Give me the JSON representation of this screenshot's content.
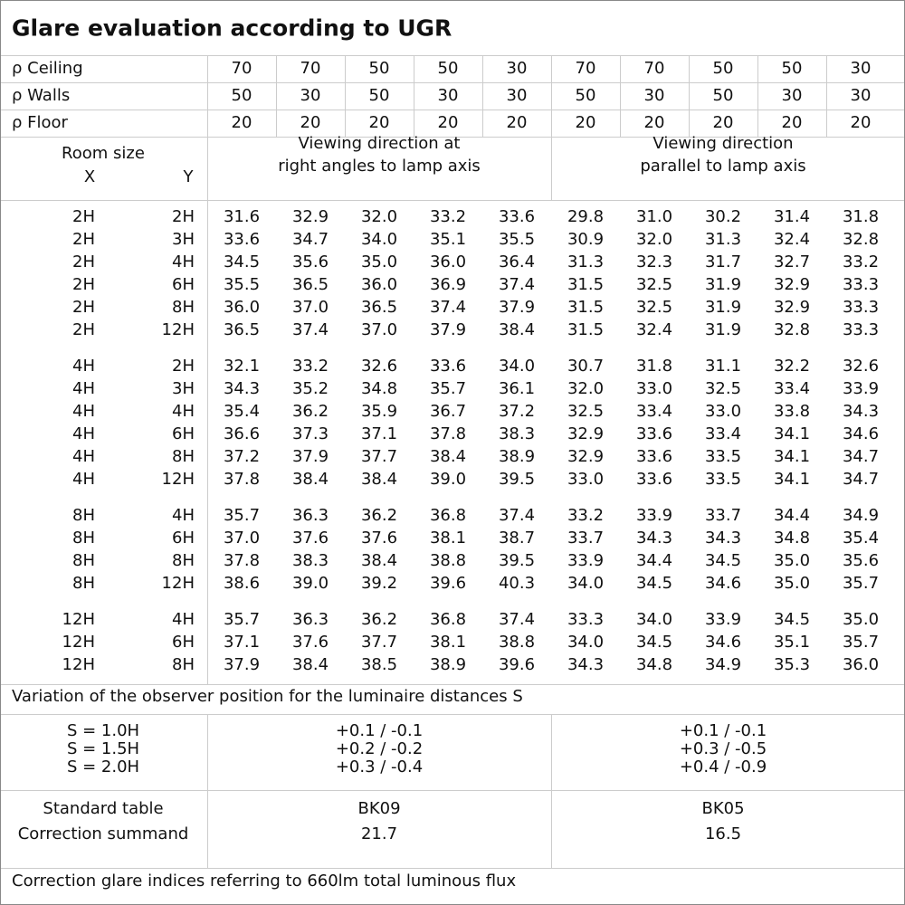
{
  "title": "Glare evaluation according to UGR",
  "reflectances": [
    {
      "label": "ρ Ceiling",
      "values": [
        "70",
        "70",
        "50",
        "50",
        "30",
        "70",
        "70",
        "50",
        "50",
        "30"
      ]
    },
    {
      "label": "ρ Walls",
      "values": [
        "50",
        "30",
        "50",
        "30",
        "30",
        "50",
        "30",
        "50",
        "30",
        "30"
      ]
    },
    {
      "label": "ρ Floor",
      "values": [
        "20",
        "20",
        "20",
        "20",
        "20",
        "20",
        "20",
        "20",
        "20",
        "20"
      ]
    }
  ],
  "header": {
    "room_size": "Room size",
    "x": "X",
    "y": "Y",
    "direction_right": [
      "Viewing direction at",
      "right angles to lamp axis"
    ],
    "direction_parallel": [
      "Viewing direction",
      "parallel to lamp axis"
    ]
  },
  "groups": [
    [
      [
        "2H",
        "2H",
        "31.6",
        "32.9",
        "32.0",
        "33.2",
        "33.6",
        "29.8",
        "31.0",
        "30.2",
        "31.4",
        "31.8"
      ],
      [
        "2H",
        "3H",
        "33.6",
        "34.7",
        "34.0",
        "35.1",
        "35.5",
        "30.9",
        "32.0",
        "31.3",
        "32.4",
        "32.8"
      ],
      [
        "2H",
        "4H",
        "34.5",
        "35.6",
        "35.0",
        "36.0",
        "36.4",
        "31.3",
        "32.3",
        "31.7",
        "32.7",
        "33.2"
      ],
      [
        "2H",
        "6H",
        "35.5",
        "36.5",
        "36.0",
        "36.9",
        "37.4",
        "31.5",
        "32.5",
        "31.9",
        "32.9",
        "33.3"
      ],
      [
        "2H",
        "8H",
        "36.0",
        "37.0",
        "36.5",
        "37.4",
        "37.9",
        "31.5",
        "32.5",
        "31.9",
        "32.9",
        "33.3"
      ],
      [
        "2H",
        "12H",
        "36.5",
        "37.4",
        "37.0",
        "37.9",
        "38.4",
        "31.5",
        "32.4",
        "31.9",
        "32.8",
        "33.3"
      ]
    ],
    [
      [
        "4H",
        "2H",
        "32.1",
        "33.2",
        "32.6",
        "33.6",
        "34.0",
        "30.7",
        "31.8",
        "31.1",
        "32.2",
        "32.6"
      ],
      [
        "4H",
        "3H",
        "34.3",
        "35.2",
        "34.8",
        "35.7",
        "36.1",
        "32.0",
        "33.0",
        "32.5",
        "33.4",
        "33.9"
      ],
      [
        "4H",
        "4H",
        "35.4",
        "36.2",
        "35.9",
        "36.7",
        "37.2",
        "32.5",
        "33.4",
        "33.0",
        "33.8",
        "34.3"
      ],
      [
        "4H",
        "6H",
        "36.6",
        "37.3",
        "37.1",
        "37.8",
        "38.3",
        "32.9",
        "33.6",
        "33.4",
        "34.1",
        "34.6"
      ],
      [
        "4H",
        "8H",
        "37.2",
        "37.9",
        "37.7",
        "38.4",
        "38.9",
        "32.9",
        "33.6",
        "33.5",
        "34.1",
        "34.7"
      ],
      [
        "4H",
        "12H",
        "37.8",
        "38.4",
        "38.4",
        "39.0",
        "39.5",
        "33.0",
        "33.6",
        "33.5",
        "34.1",
        "34.7"
      ]
    ],
    [
      [
        "8H",
        "4H",
        "35.7",
        "36.3",
        "36.2",
        "36.8",
        "37.4",
        "33.2",
        "33.9",
        "33.7",
        "34.4",
        "34.9"
      ],
      [
        "8H",
        "6H",
        "37.0",
        "37.6",
        "37.6",
        "38.1",
        "38.7",
        "33.7",
        "34.3",
        "34.3",
        "34.8",
        "35.4"
      ],
      [
        "8H",
        "8H",
        "37.8",
        "38.3",
        "38.4",
        "38.8",
        "39.5",
        "33.9",
        "34.4",
        "34.5",
        "35.0",
        "35.6"
      ],
      [
        "8H",
        "12H",
        "38.6",
        "39.0",
        "39.2",
        "39.6",
        "40.3",
        "34.0",
        "34.5",
        "34.6",
        "35.0",
        "35.7"
      ]
    ],
    [
      [
        "12H",
        "4H",
        "35.7",
        "36.3",
        "36.2",
        "36.8",
        "37.4",
        "33.3",
        "34.0",
        "33.9",
        "34.5",
        "35.0"
      ],
      [
        "12H",
        "6H",
        "37.1",
        "37.6",
        "37.7",
        "38.1",
        "38.8",
        "34.0",
        "34.5",
        "34.6",
        "35.1",
        "35.7"
      ],
      [
        "12H",
        "8H",
        "37.9",
        "38.4",
        "38.5",
        "38.9",
        "39.6",
        "34.3",
        "34.8",
        "34.9",
        "35.3",
        "36.0"
      ]
    ]
  ],
  "variation": {
    "title": "Variation of the observer position for the luminaire distances S",
    "rows": [
      [
        "S = 1.0H",
        "+0.1 / -0.1",
        "+0.1 / -0.1"
      ],
      [
        "S = 1.5H",
        "+0.2 / -0.2",
        "+0.3 / -0.5"
      ],
      [
        "S = 2.0H",
        "+0.3 / -0.4",
        "+0.4 / -0.9"
      ]
    ]
  },
  "standard": {
    "rows": [
      [
        "Standard table",
        "BK09",
        "BK05"
      ],
      [
        "Correction summand",
        "21.7",
        "16.5"
      ]
    ]
  },
  "footer": "Correction glare indices referring to 660lm total luminous flux"
}
